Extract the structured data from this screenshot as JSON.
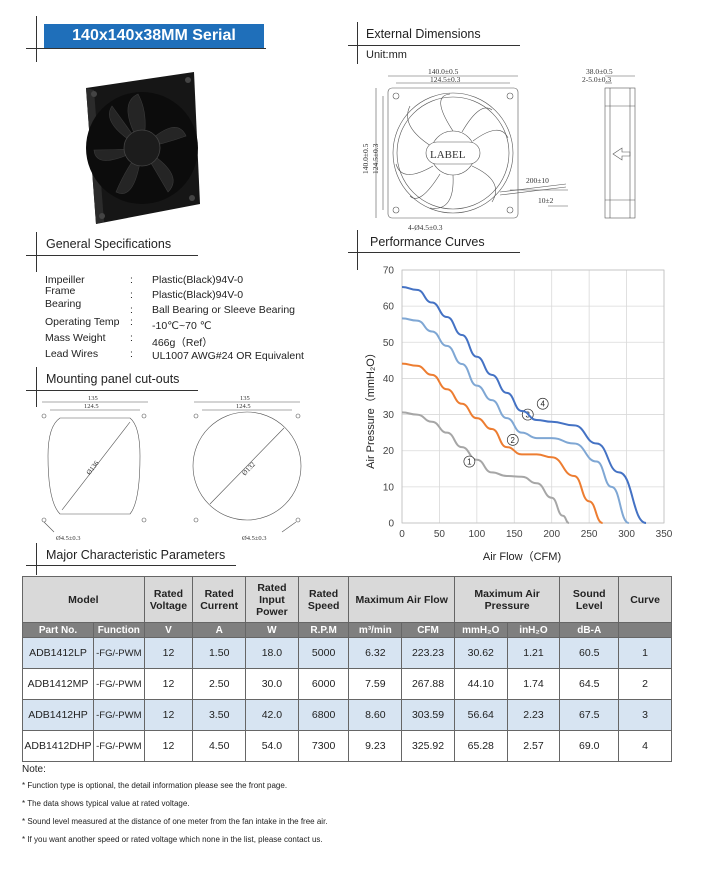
{
  "header": {
    "title": "140x140x38MM Serial"
  },
  "external_dimensions": {
    "title": "External Dimensions",
    "unit": "Unit:mm",
    "dims": {
      "width_outer": "140.0±0.5",
      "width_hole": "124.5±0.3",
      "height_outer": "140.0±0.5",
      "height_hole": "124.5±0.3",
      "depth": "38.0±0.5",
      "depth2": "2-5.0±0.3",
      "label": "LABEL",
      "wire_length": "200±10",
      "wire_strip": "10±2",
      "hole_dia": "4-Ø4.5±0.3"
    }
  },
  "general_specs": {
    "title": "General Specifications",
    "rows": [
      {
        "label": "Impeiller",
        "value": "Plastic(Black)94V-0"
      },
      {
        "label": "Frame",
        "value": "Plastic(Black)94V-0"
      },
      {
        "label": "Bearing",
        "value": "Ball Bearing or Sleeve Bearing"
      },
      {
        "label": "Operating Temp",
        "value": "-10℃~70 ℃"
      },
      {
        "label": "Mass Weight",
        "value": "466g（Ref）"
      },
      {
        "label": "Lead Wires",
        "value": "UL1007 AWG#24 OR Equivalent"
      }
    ],
    "colon": ":"
  },
  "mounting": {
    "title": "Mounting panel cut-outs",
    "left": {
      "w1": "135",
      "w2": "124.5",
      "dia": "Ø136",
      "hole": "Ø4.5±0.3"
    },
    "right": {
      "w1": "135",
      "w2": "124.5",
      "dia": "Ø132",
      "hole": "Ø4.5±0.3"
    }
  },
  "performance": {
    "title": "Performance Curves"
  },
  "chart_data": {
    "type": "line",
    "xlabel": "Air Flow（CFM)",
    "ylabel": "Air Pressure（mmH₂O）",
    "xlim": [
      0,
      350
    ],
    "ylim": [
      0,
      70
    ],
    "xticks": [
      0,
      50,
      100,
      150,
      200,
      250,
      300,
      350
    ],
    "yticks": [
      0,
      10,
      20,
      30,
      40,
      50,
      60,
      70
    ],
    "grid": true,
    "series": [
      {
        "name": "1",
        "color": "#a6a6a6",
        "x": [
          0,
          20,
          40,
          60,
          80,
          100,
          120,
          140,
          160,
          180,
          200,
          215,
          223
        ],
        "y": [
          30.6,
          30,
          28,
          25,
          21,
          17.5,
          14,
          13,
          12.8,
          11,
          7,
          2,
          0
        ]
      },
      {
        "name": "2",
        "color": "#ed7d31",
        "x": [
          0,
          20,
          40,
          60,
          80,
          100,
          120,
          140,
          160,
          180,
          200,
          230,
          250,
          268
        ],
        "y": [
          44.1,
          43.5,
          41,
          37,
          33,
          29,
          26,
          21,
          19,
          19,
          18.2,
          13,
          6,
          0
        ]
      },
      {
        "name": "3",
        "color": "#7fa7d4",
        "x": [
          0,
          20,
          40,
          60,
          80,
          100,
          120,
          140,
          160,
          180,
          200,
          230,
          260,
          280,
          303
        ],
        "y": [
          56.6,
          56,
          53,
          49,
          44,
          38,
          34,
          29,
          25,
          23.5,
          23.5,
          22,
          17,
          10,
          0
        ]
      },
      {
        "name": "4",
        "color": "#4472c4",
        "x": [
          0,
          20,
          40,
          60,
          80,
          100,
          120,
          140,
          160,
          180,
          200,
          230,
          260,
          290,
          326
        ],
        "y": [
          65.3,
          64.5,
          61,
          57,
          52,
          46,
          41,
          36,
          31,
          28.5,
          28,
          27,
          22,
          14,
          0
        ]
      }
    ]
  },
  "major": {
    "title": "Major Characteristic Parameters",
    "headers": {
      "model": "Model",
      "rated_voltage": "Rated Voltage",
      "rated_current": "Rated Current",
      "rated_input_power": "Rated Input Power",
      "rated_speed": "Rated Speed",
      "max_air_flow": "Maximum Air Flow",
      "max_air_pressure": "Maximum Air Pressure",
      "sound_level": "Sound Level",
      "curve": "Curve"
    },
    "subheaders": {
      "part_no": "Part No.",
      "function": "Function",
      "v": "V",
      "a": "A",
      "w": "W",
      "rpm": "R.P.M",
      "m3min": "m³/min",
      "cfm": "CFM",
      "mmh2o": "mmH₂O",
      "inh2o": "inH₂O",
      "dba": "dB-A"
    },
    "rows": [
      {
        "part": "ADB1412LP",
        "function": "-FG/-PWM",
        "v": "12",
        "a": "1.50",
        "w": "18.0",
        "rpm": "5000",
        "m3": "6.32",
        "cfm": "223.23",
        "mm": "30.62",
        "in": "1.21",
        "db": "60.5",
        "curve": "1"
      },
      {
        "part": "ADB1412MP",
        "function": "-FG/-PWM",
        "v": "12",
        "a": "2.50",
        "w": "30.0",
        "rpm": "6000",
        "m3": "7.59",
        "cfm": "267.88",
        "mm": "44.10",
        "in": "1.74",
        "db": "64.5",
        "curve": "2"
      },
      {
        "part": "ADB1412HP",
        "function": "-FG/-PWM",
        "v": "12",
        "a": "3.50",
        "w": "42.0",
        "rpm": "6800",
        "m3": "8.60",
        "cfm": "303.59",
        "mm": "56.64",
        "in": "2.23",
        "db": "67.5",
        "curve": "3"
      },
      {
        "part": "ADB1412DHP",
        "function": "-FG/-PWM",
        "v": "12",
        "a": "4.50",
        "w": "54.0",
        "rpm": "7300",
        "m3": "9.23",
        "cfm": "325.92",
        "mm": "65.28",
        "in": "2.57",
        "db": "69.0",
        "curve": "4"
      }
    ]
  },
  "notes": {
    "title": "Note:",
    "items": [
      "* Function type is optional, the detail information please see the front page.",
      "* The data shows typical value at rated voltage.",
      "* Sound level measured at the distance of  one meter from the fan intake in the free air.",
      "* If you want another speed or rated voltage which none in the list, please contact us."
    ]
  }
}
